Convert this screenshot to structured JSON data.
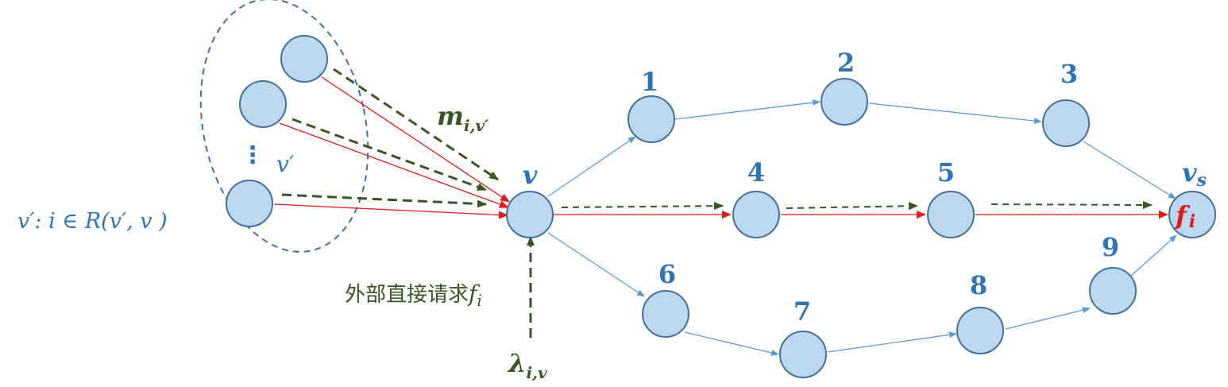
{
  "colors": {
    "node_fill": "#bdd7ee",
    "node_stroke": "#41719c",
    "blue_edge": "#5b9bd5",
    "red_flow": "#e01b1b",
    "green_dashed": "#375623",
    "label_blue": "#2e75b6"
  },
  "labels": {
    "n1": "1",
    "n2": "2",
    "n3": "3",
    "n4": "4",
    "n5": "5",
    "n6": "6",
    "n7": "7",
    "n8": "8",
    "n9": "9",
    "v": "v",
    "vs_base": "v",
    "vs_sub": "s",
    "fi_base": "f",
    "fi_sub": "i",
    "m_base": "m",
    "m_sub": "i,v′",
    "lambda_base": "λ",
    "lambda_sub": "i,v",
    "vprime_group": "v′",
    "ellipsis": "⋮",
    "set_def": "v′: i ∈ R(v′, v )",
    "external_text": "外部直接请求",
    "external_f": "f",
    "external_sub": "i"
  }
}
